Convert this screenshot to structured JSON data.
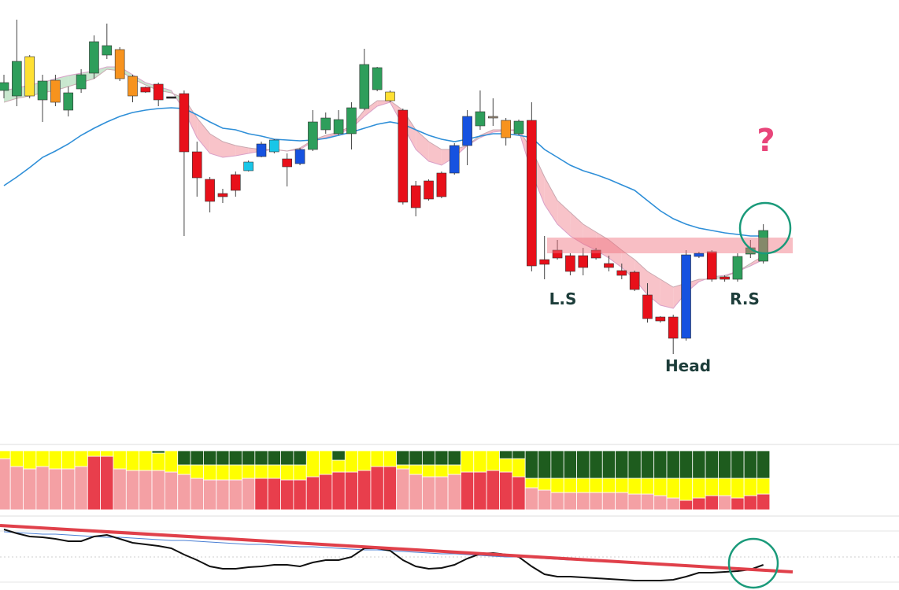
{
  "chart_data": [
    {
      "type": "candlestick",
      "open": [
        485,
        478,
        528,
        473,
        498,
        460,
        487,
        507,
        530,
        537,
        503,
        489,
        493,
        477,
        481,
        407,
        372,
        354,
        378,
        383,
        401,
        407,
        398,
        392,
        410,
        435,
        430,
        430,
        462,
        486,
        483,
        460,
        364,
        370,
        380,
        380,
        415,
        440,
        452,
        447,
        430,
        447,
        270,
        282,
        275,
        275,
        282,
        265,
        256,
        254,
        225,
        197,
        197,
        170,
        274,
        280,
        248,
        245,
        277,
        268
      ],
      "high": [
        505,
        575,
        530,
        505,
        505,
        490,
        512,
        555,
        570,
        540,
        505,
        490,
        495,
        477,
        485,
        420,
        375,
        360,
        382,
        396,
        420,
        423,
        405,
        412,
        460,
        457,
        460,
        470,
        538,
        515,
        485,
        462,
        370,
        372,
        382,
        418,
        460,
        485,
        475,
        450,
        448,
        470,
        300,
        295,
        278,
        285,
        285,
        275,
        265,
        256,
        240,
        198,
        200,
        282,
        280,
        282,
        250,
        278,
        295,
        315
      ],
      "low": [
        475,
        465,
        475,
        445,
        465,
        452,
        482,
        500,
        525,
        497,
        470,
        482,
        465,
        475,
        300,
        350,
        330,
        342,
        350,
        382,
        400,
        405,
        363,
        390,
        408,
        430,
        428,
        410,
        460,
        484,
        470,
        340,
        325,
        345,
        348,
        378,
        390,
        435,
        440,
        415,
        428,
        255,
        245,
        270,
        250,
        250,
        270,
        255,
        245,
        230,
        190,
        190,
        150,
        167,
        272,
        242,
        242,
        242,
        272,
        265
      ],
      "close": [
        495,
        522,
        478,
        497,
        470,
        482,
        505,
        547,
        542,
        500,
        478,
        483,
        473,
        475,
        407,
        374,
        344,
        350,
        358,
        394,
        417,
        422,
        388,
        410,
        445,
        450,
        448,
        463,
        518,
        514,
        472,
        343,
        336,
        347,
        350,
        415,
        452,
        458,
        450,
        425,
        446,
        262,
        264,
        272,
        255,
        260,
        272,
        260,
        250,
        232,
        195,
        192,
        170,
        276,
        278,
        245,
        245,
        274,
        285,
        307
      ],
      "colors": [
        "#2e9e5b",
        "#2e9e5b",
        "#ffe033",
        "#2e9e5b",
        "#f7931e",
        "#2e9e5b",
        "#2e9e5b",
        "#2e9e5b",
        "#2e9e5b",
        "#f7931e",
        "#f7931e",
        "#e8101a",
        "#e8101a",
        "#222222",
        "#e8101a",
        "#e8101a",
        "#e8101a",
        "#e8101a",
        "#e8101a",
        "#19c6e8",
        "#1652e0",
        "#19c6e8",
        "#e8101a",
        "#1652e0",
        "#2e9e5b",
        "#2e9e5b",
        "#2e9e5b",
        "#2e9e5b",
        "#2e9e5b",
        "#2e9e5b",
        "#ffe033",
        "#e8101a",
        "#e8101a",
        "#e8101a",
        "#e8101a",
        "#1652e0",
        "#1652e0",
        "#2e9e5b",
        "#a08f7a",
        "#f7931e",
        "#2e9e5b",
        "#e8101a",
        "#e8101a",
        "#e8101a",
        "#e8101a",
        "#e8101a",
        "#e8101a",
        "#e8101a",
        "#e8101a",
        "#e8101a",
        "#e8101a",
        "#e8101a",
        "#e8101a",
        "#1652e0",
        "#1652e0",
        "#e8101a",
        "#e8101a",
        "#2e9e5b",
        "#2e9e5b",
        "#2e9e5b"
      ],
      "cloud": [
        {
          "color": "#d9a0c8",
          "values": [
            485,
            488,
            492,
            495,
            500,
            504,
            507,
            510,
            515,
            515,
            505,
            495,
            490,
            485,
            460,
            425,
            405,
            400,
            402,
            405,
            408,
            410,
            408,
            410,
            420,
            425,
            430,
            437,
            452,
            465,
            470,
            440,
            410,
            395,
            390,
            400,
            415,
            425,
            432,
            434,
            434,
            380,
            340,
            315,
            300,
            290,
            282,
            272,
            260,
            245,
            225,
            212,
            208,
            228,
            242,
            248,
            250,
            255,
            262,
            270
          ]
        },
        {
          "color": "#c9a8b0",
          "values": [
            470,
            475,
            478,
            482,
            485,
            490,
            495,
            500,
            512,
            510,
            500,
            492,
            485,
            482,
            475,
            450,
            430,
            420,
            415,
            412,
            410,
            410,
            408,
            412,
            422,
            428,
            432,
            440,
            460,
            472,
            472,
            460,
            435,
            420,
            410,
            410,
            415,
            428,
            435,
            435,
            435,
            410,
            375,
            345,
            330,
            315,
            305,
            295,
            282,
            270,
            255,
            245,
            235,
            240,
            245,
            245,
            248,
            255,
            265,
            275
          ]
        }
      ],
      "cloud_colors": [
        "#bfe3c7",
        "#f7b9c0"
      ],
      "line": {
        "color": "#2f8fd8",
        "values": [
          364,
          375,
          387,
          400,
          408,
          417,
          428,
          437,
          445,
          452,
          457,
          460,
          462,
          463,
          462,
          454,
          445,
          437,
          435,
          430,
          427,
          423,
          422,
          421,
          422,
          424,
          428,
          432,
          437,
          442,
          445,
          442,
          435,
          428,
          423,
          420,
          423,
          427,
          430,
          430,
          428,
          425,
          410,
          400,
          390,
          383,
          378,
          372,
          365,
          358,
          345,
          332,
          322,
          315,
          310,
          307,
          304,
          302,
          300,
          300
        ]
      },
      "annotations": [
        "L.S",
        "R.S",
        "Head",
        "?"
      ],
      "ylim": [
        0,
        600
      ]
    },
    {
      "type": "stacked_bar",
      "series": [
        {
          "colors": [
            "#f4a0a4",
            "#f4a0a4",
            "#f4a0a4",
            "#f4a0a4",
            "#f4a0a4",
            "#f4a0a4",
            "#f4a0a4",
            "#e83e4c",
            "#e83e4c",
            "#f4a0a4",
            "#f4a0a4",
            "#f4a0a4",
            "#f4a0a4",
            "#f4a0a4",
            "#f4a0a4",
            "#f4a0a4",
            "#f4a0a4",
            "#f4a0a4",
            "#f4a0a4",
            "#f4a0a4",
            "#e83e4c",
            "#e83e4c",
            "#e83e4c",
            "#e83e4c",
            "#e83e4c",
            "#e83e4c",
            "#e83e4c",
            "#e83e4c",
            "#e83e4c",
            "#e83e4c",
            "#e83e4c",
            "#f4a0a4",
            "#f4a0a4",
            "#f4a0a4",
            "#f4a0a4",
            "#f4a0a4",
            "#e83e4c",
            "#e83e4c",
            "#e83e4c",
            "#e83e4c",
            "#e83e4c",
            "#f4a0a4",
            "#f4a0a4",
            "#f4a0a4",
            "#f4a0a4",
            "#f4a0a4",
            "#f4a0a4",
            "#f4a0a4",
            "#f4a0a4",
            "#f4a0a4",
            "#f4a0a4",
            "#f4a0a4",
            "#f4a0a4",
            "#e83e4c",
            "#e83e4c",
            "#e83e4c",
            "#f4a0a4",
            "#e83e4c",
            "#e83e4c",
            "#e83e4c"
          ],
          "values": [
            65,
            55,
            52,
            55,
            52,
            52,
            55,
            68,
            68,
            52,
            50,
            50,
            50,
            48,
            45,
            40,
            38,
            38,
            38,
            40,
            40,
            40,
            38,
            38,
            42,
            45,
            48,
            48,
            50,
            55,
            55,
            52,
            45,
            42,
            42,
            45,
            48,
            48,
            50,
            48,
            42,
            28,
            25,
            22,
            22,
            22,
            22,
            22,
            22,
            20,
            20,
            18,
            15,
            12,
            15,
            18,
            18,
            15,
            18,
            20
          ]
        },
        {
          "color": "#ffff00",
          "values": [
            10,
            20,
            23,
            20,
            23,
            23,
            20,
            7,
            7,
            23,
            25,
            25,
            22,
            27,
            12,
            17,
            19,
            19,
            19,
            17,
            17,
            17,
            19,
            19,
            33,
            30,
            15,
            27,
            25,
            20,
            20,
            5,
            12,
            15,
            15,
            12,
            27,
            27,
            25,
            17,
            23,
            12,
            15,
            18,
            18,
            18,
            18,
            18,
            18,
            20,
            20,
            22,
            25,
            28,
            25,
            22,
            22,
            25,
            22,
            20
          ]
        },
        {
          "color": "#1e5c1e",
          "values": [
            0,
            0,
            0,
            0,
            0,
            0,
            0,
            0,
            0,
            0,
            0,
            0,
            3,
            0,
            18,
            18,
            18,
            18,
            18,
            18,
            18,
            18,
            18,
            18,
            0,
            0,
            12,
            0,
            0,
            0,
            0,
            18,
            18,
            18,
            18,
            18,
            0,
            0,
            0,
            10,
            10,
            35,
            35,
            35,
            35,
            35,
            35,
            35,
            35,
            35,
            35,
            35,
            35,
            35,
            35,
            35,
            35,
            35,
            35,
            35
          ]
        }
      ],
      "ylim": [
        0,
        75
      ]
    },
    {
      "type": "line",
      "series": [
        {
          "color": "#111111",
          "values": [
            72,
            67,
            63,
            62,
            60,
            57,
            57,
            63,
            65,
            60,
            55,
            53,
            51,
            48,
            40,
            33,
            25,
            22,
            22,
            24,
            25,
            27,
            27,
            25,
            30,
            33,
            33,
            37,
            48,
            48,
            45,
            33,
            25,
            22,
            23,
            27,
            35,
            41,
            42,
            40,
            37,
            25,
            15,
            12,
            12,
            11,
            10,
            9,
            8,
            7,
            7,
            7,
            8,
            12,
            17,
            17,
            18,
            19,
            21,
            27
          ]
        },
        {
          "color": "#4a7fd4",
          "values": [
            69,
            68,
            67,
            66,
            66,
            65,
            64,
            63,
            62,
            62,
            61,
            60,
            59,
            58,
            58,
            57,
            56,
            55,
            54,
            53,
            53,
            52,
            51,
            50,
            50,
            49,
            48,
            47,
            46,
            46,
            45,
            44,
            43,
            42,
            41,
            41,
            40,
            39,
            38,
            37,
            37,
            36,
            35,
            34,
            33,
            33,
            32,
            31,
            30,
            29,
            29,
            28,
            27,
            26,
            25,
            25,
            24,
            23,
            22,
            21
          ]
        }
      ],
      "ylim": [
        0,
        85
      ]
    }
  ]
}
